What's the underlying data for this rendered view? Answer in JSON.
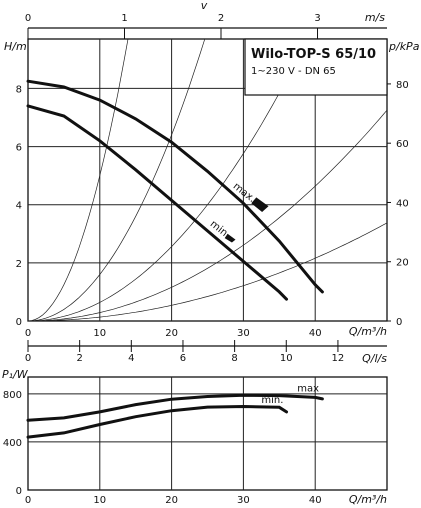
{
  "chart_data": [
    {
      "type": "line",
      "title": "Wilo-TOP-S 65/10",
      "subtitle": "1~230 V - DN 65",
      "ylabel": "H/m",
      "ylabel_right": "p/kPa",
      "xlabel": "Q/m³/h",
      "xlabel_top": "m/s",
      "top_axis_letter": "v",
      "xlim": [
        0,
        50
      ],
      "ylim": [
        0,
        9.7
      ],
      "y_ticks": [
        "0",
        "2",
        "4",
        "6",
        "8"
      ],
      "y_right_ticks": [
        "0",
        "20",
        "40",
        "60",
        "80"
      ],
      "x_ticks": [
        "0",
        "10",
        "20",
        "30",
        "40"
      ],
      "top_ticks": [
        "0",
        "1",
        "2",
        "3"
      ],
      "grid": true,
      "series": [
        {
          "name": "max.",
          "x": [
            0,
            5,
            10,
            15,
            20,
            25,
            30,
            35,
            40,
            41
          ],
          "y": [
            8.25,
            8.05,
            7.6,
            6.95,
            6.15,
            5.15,
            4.05,
            2.75,
            1.25,
            1.0
          ]
        },
        {
          "name": "min.",
          "x": [
            0,
            5,
            10,
            15,
            20,
            25,
            30,
            35,
            36
          ],
          "y": [
            7.4,
            7.05,
            6.2,
            5.2,
            4.15,
            3.1,
            2.05,
            1.0,
            0.75
          ]
        }
      ],
      "system_curves_k": [
        0.05,
        0.016,
        0.0064,
        0.0029,
        0.00135
      ]
    },
    {
      "type": "line",
      "xlabel": "Q/l/s",
      "x_ticks": [
        "0",
        "2",
        "4",
        "6",
        "8",
        "10",
        "12"
      ],
      "xlim": [
        0,
        13.9
      ],
      "grid": true
    },
    {
      "type": "line",
      "ylabel": "P₁/W",
      "xlabel": "Q/m³/h",
      "xlim": [
        0,
        50
      ],
      "ylim": [
        0,
        940
      ],
      "y_ticks": [
        "0",
        "400",
        "800"
      ],
      "x_ticks": [
        "0",
        "10",
        "20",
        "30",
        "40"
      ],
      "grid": true,
      "series": [
        {
          "name": "max",
          "x": [
            0,
            5,
            10,
            15,
            20,
            25,
            30,
            35,
            40,
            41
          ],
          "y": [
            580,
            600,
            650,
            710,
            755,
            778,
            788,
            785,
            770,
            758
          ]
        },
        {
          "name": "min.",
          "x": [
            0,
            5,
            10,
            15,
            20,
            25,
            30,
            35,
            36
          ],
          "y": [
            440,
            475,
            545,
            610,
            660,
            690,
            695,
            688,
            650
          ]
        }
      ]
    }
  ]
}
